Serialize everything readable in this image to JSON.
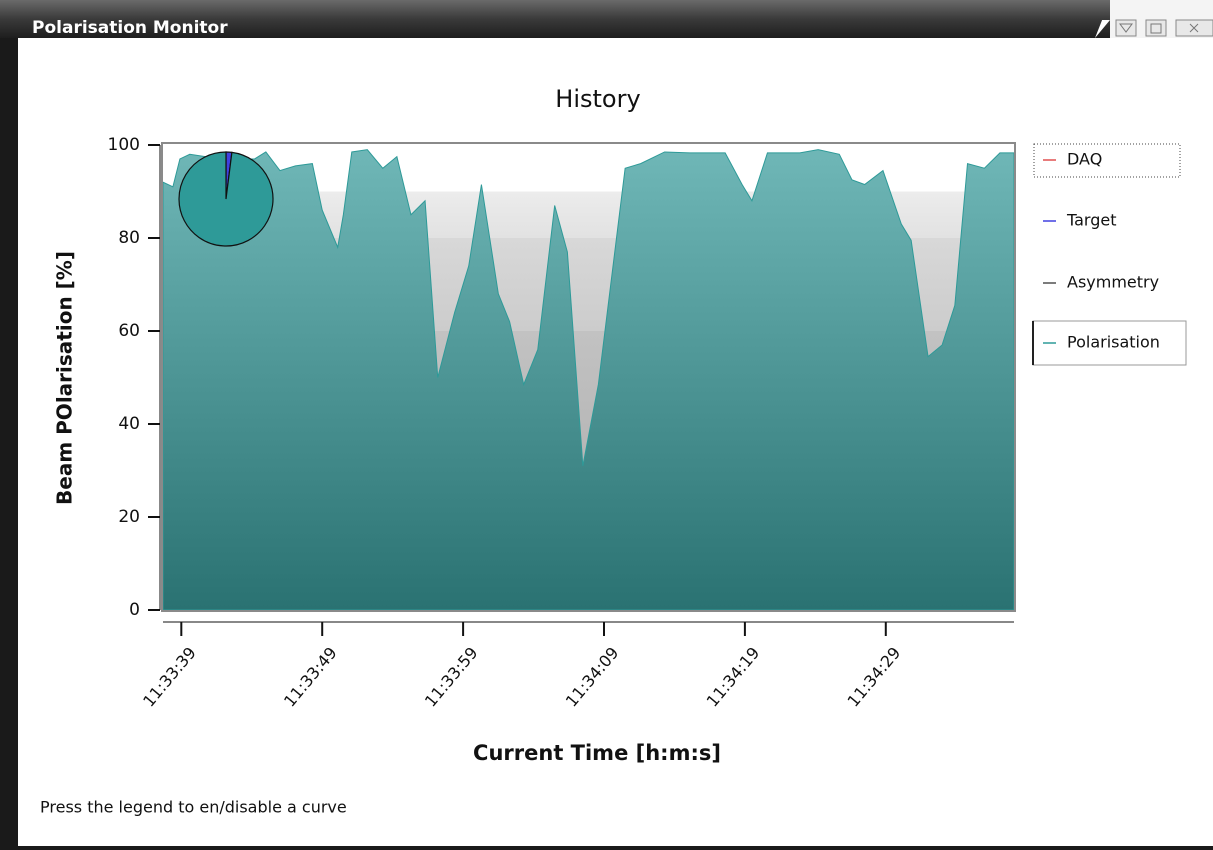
{
  "window": {
    "title": "Polarisation Monitor"
  },
  "status": "Press the legend to en/disable a curve",
  "chart_data": {
    "type": "area",
    "title": "History",
    "x_label": "Current Time [h:m:s]",
    "y_label": "Beam POlarisation [%]",
    "x": [
      41617.7,
      41618.4,
      41618.9,
      41619.6,
      41620.7,
      41621.8,
      41623.2,
      41624.2,
      41625.0,
      41626.0,
      41627.1,
      41628.3,
      41629.0,
      41630.1,
      41630.5,
      41631.1,
      41632.2,
      41633.3,
      41634.3,
      41635.3,
      41636.3,
      41637.2,
      41638.4,
      41639.4,
      41640.3,
      41641.5,
      41642.3,
      41643.3,
      41644.3,
      41645.5,
      41646.4,
      41647.5,
      41648.6,
      41650.5,
      41651.6,
      41653.3,
      41655.1,
      41657.6,
      41658.8,
      41659.5,
      41660.6,
      41662.9,
      41664.2,
      41665.7,
      41666.6,
      41667.5,
      41668.8,
      41670.1,
      41670.8,
      41672.0,
      41673.0,
      41673.9,
      41674.8,
      41676.0,
      41677.1,
      41678.1
    ],
    "series": [
      {
        "name": "DAQ",
        "color": "#e05050"
      },
      {
        "name": "Target",
        "color": "#4040e0"
      },
      {
        "name": "Asymmetry",
        "color": "#505050"
      },
      {
        "name": "Polarisation",
        "color": "#2e9a98",
        "values": [
          92,
          91,
          97,
          98,
          97.5,
          98,
          97,
          97,
          98.5,
          94.5,
          95.5,
          96,
          86,
          78,
          85,
          98.5,
          99,
          95,
          97.5,
          85,
          88,
          50,
          64,
          74,
          91.5,
          68,
          62,
          48.5,
          56,
          87,
          77,
          31,
          48.5,
          95,
          96,
          98.5,
          98.3,
          98.3,
          91.5,
          88,
          98.3,
          98.3,
          99,
          98,
          92.5,
          91.5,
          94.5,
          83,
          79.5,
          54.5,
          57,
          65.5,
          96,
          95,
          98.3,
          98.3
        ]
      }
    ],
    "xlim": [
      41617.7,
      41678.1
    ],
    "xticks": [
      {
        "value": 41619,
        "label": "11:33:39"
      },
      {
        "value": 41629,
        "label": "11:33:49"
      },
      {
        "value": 41639,
        "label": "11:33:59"
      },
      {
        "value": 41649,
        "label": "11:34:09"
      },
      {
        "value": 41659,
        "label": "11:34:19"
      },
      {
        "value": 41669,
        "label": "11:34:29"
      }
    ],
    "ylim": [
      0,
      100
    ],
    "yticks": [
      0,
      20,
      40,
      60,
      80,
      100
    ],
    "inset_pie": {
      "values": [
        2,
        98
      ],
      "colors": [
        "#4040e0",
        "#2e9a98"
      ]
    }
  }
}
